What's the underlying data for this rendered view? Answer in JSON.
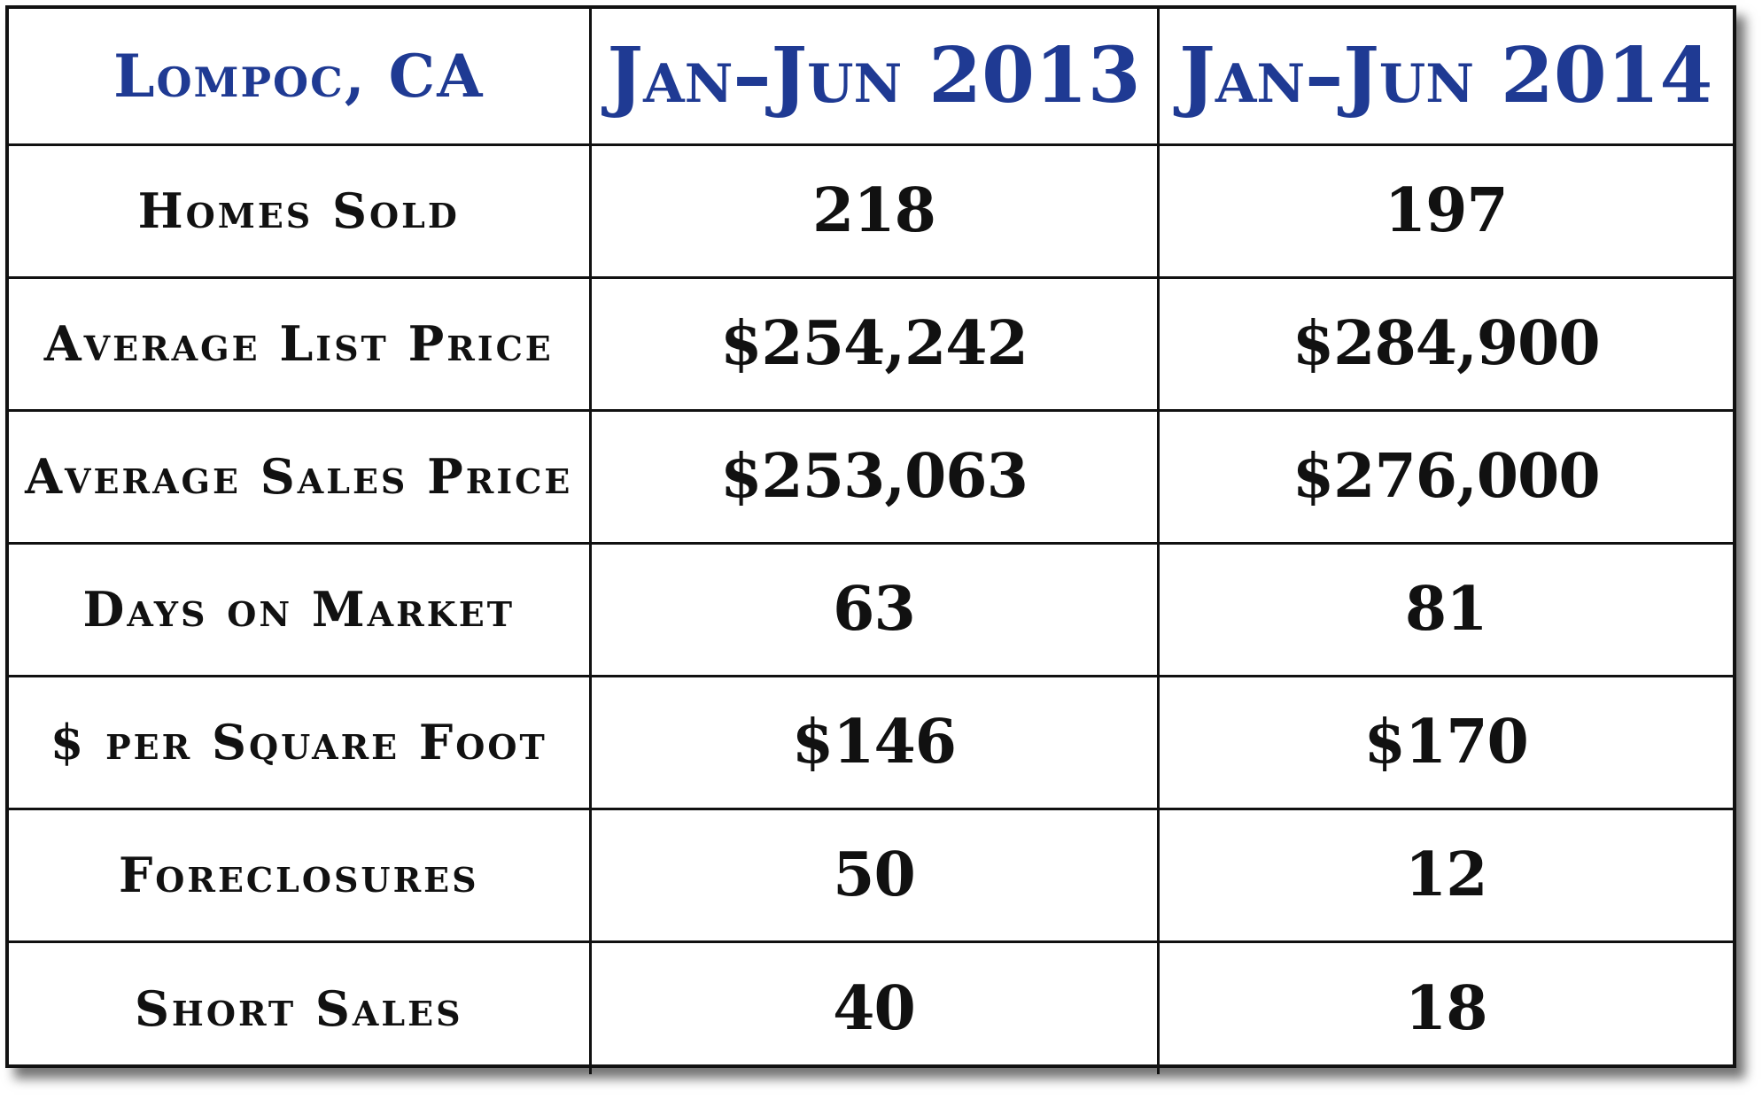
{
  "chart_data": {
    "type": "table",
    "title": "",
    "columns": [
      "Lompoc, CA",
      "Jan–Jun 2013",
      "Jan–Jun 2014"
    ],
    "rows": [
      {
        "label": "Homes Sold",
        "values": [
          "218",
          "197"
        ]
      },
      {
        "label": "Average List Price",
        "values": [
          "$254,242",
          "$284,900"
        ]
      },
      {
        "label": "Average Sales Price",
        "values": [
          "$253,063",
          "$276,000"
        ]
      },
      {
        "label": "Days on Market",
        "values": [
          "63",
          "81"
        ]
      },
      {
        "label": "$ per Square Foot",
        "values": [
          "$146",
          "$170"
        ]
      },
      {
        "label": "Foreclosures",
        "values": [
          "50",
          "12"
        ]
      },
      {
        "label": "Short Sales",
        "values": [
          "40",
          "18"
        ]
      }
    ]
  },
  "colors": {
    "header_text": "#1f3a93",
    "body_text": "#111111",
    "border": "#111111",
    "background": "#ffffff"
  }
}
